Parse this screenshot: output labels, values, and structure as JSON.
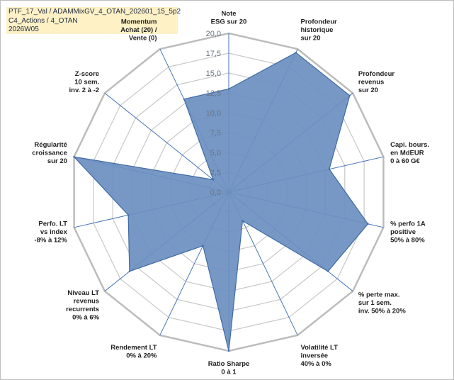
{
  "header": {
    "line1": "PTF_17_Val / ADAMMixGV_4_OTAN_202601_15_5p2",
    "line2": "C4_Actions / 4_OTAN",
    "line3": "2026W05"
  },
  "colors": {
    "fill": "#6b8fc0",
    "stroke": "#3f6aa6",
    "grid": "#c8c8c8",
    "spoke": "#4a76b8",
    "ring_outer": "#bcbcbc"
  },
  "chart_data": {
    "type": "radar",
    "title": "",
    "rmin": 0,
    "rmax": 20,
    "tick_step": 2.5,
    "tick_labels": [
      "0,0",
      "2,5",
      "5,0",
      "7,5",
      "10,0",
      "12,5",
      "15,0",
      "17,5",
      "20,0"
    ],
    "axes": [
      {
        "label": [
          "Note",
          "ESG sur 20"
        ],
        "value": 13.0
      },
      {
        "label": [
          "Profondeur",
          "historique",
          "sur 20"
        ],
        "value": 19.5
      },
      {
        "label": [
          "Profondeur",
          "revenus",
          "sur 20"
        ],
        "value": 19.5
      },
      {
        "label": [
          "Capi. bours.",
          "en MdEUR",
          "0 à 60 G€"
        ],
        "value": 13.0
      },
      {
        "label": [
          "% perfo 1A",
          "positive",
          "50% à 80%"
        ],
        "value": 18.0
      },
      {
        "label": [
          "% perte max.",
          "sur 1 sem.",
          "inv. 50% à 20%"
        ],
        "value": 16.0
      },
      {
        "label": [
          "Volatilité LT",
          "inversée",
          "40% à 0%"
        ],
        "value": 4.0
      },
      {
        "label": [
          "Ratio Sharpe",
          "0 à 1"
        ],
        "value": 20.0
      },
      {
        "label": [
          "Rendement LT",
          "0% à 20%"
        ],
        "value": 7.5
      },
      {
        "label": [
          "Niveau LT",
          "revenus",
          "recurrents",
          "0% à 6%"
        ],
        "value": 16.0
      },
      {
        "label": [
          "Perfo. LT",
          "vs index",
          "-8% à 12%"
        ],
        "value": 13.0
      },
      {
        "label": [
          "Régularité",
          "croissance",
          "sur 20"
        ],
        "value": 20.0
      },
      {
        "label": [
          "Z-score",
          "10 sem.",
          "inv. 2 à -2"
        ],
        "value": 2.5
      },
      {
        "label": [
          "Momentum",
          "Achat (20) /",
          "Vente (0)"
        ],
        "value": 13.0
      }
    ]
  }
}
